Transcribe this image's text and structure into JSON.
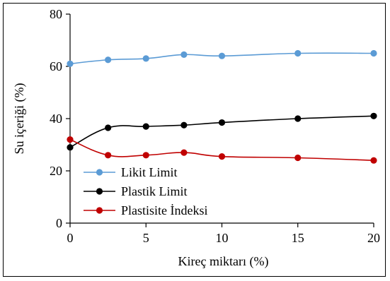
{
  "chart_data": {
    "type": "line",
    "xlabel": "Kireç miktarı (%)",
    "ylabel": "Su içeriği (%)",
    "xlim": [
      0,
      20
    ],
    "ylim": [
      0,
      80
    ],
    "xticks": [
      0,
      5,
      10,
      15,
      20
    ],
    "yticks": [
      0,
      20,
      40,
      60,
      80
    ],
    "grid": false,
    "legend_position": "lower-left",
    "smooth": true,
    "series": [
      {
        "name": "Likit Limit",
        "color": "#5b9bd5",
        "x": [
          0,
          2.5,
          5,
          7.5,
          10,
          15,
          20
        ],
        "y": [
          61,
          62.5,
          63,
          64.5,
          64,
          65,
          65
        ]
      },
      {
        "name": "Plastik Limit",
        "color": "#000000",
        "x": [
          0,
          2.5,
          5,
          7.5,
          10,
          15,
          20
        ],
        "y": [
          29,
          36.5,
          37,
          37.5,
          38.5,
          40,
          41
        ]
      },
      {
        "name": "Plastisite İndeksi",
        "color": "#c00000",
        "x": [
          0,
          2.5,
          5,
          7.5,
          10,
          15,
          20
        ],
        "y": [
          32,
          26,
          26,
          27,
          25.5,
          25,
          24
        ]
      }
    ]
  }
}
